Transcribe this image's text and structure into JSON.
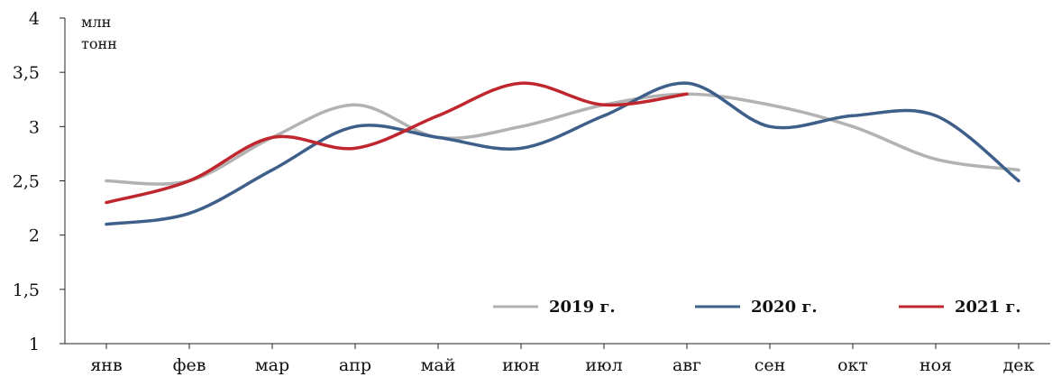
{
  "chart_data": {
    "type": "line",
    "title": "",
    "xlabel": "",
    "ylabel": "млн тонн",
    "ylabel_lines": [
      "млн",
      "тонн"
    ],
    "categories": [
      "янв",
      "фев",
      "мар",
      "апр",
      "май",
      "июн",
      "июл",
      "авг",
      "сен",
      "окт",
      "ноя",
      "дек"
    ],
    "ylim": [
      1,
      4
    ],
    "yticks": [
      "1",
      "1,5",
      "2",
      "2,5",
      "3",
      "3,5",
      "4"
    ],
    "ytick_values": [
      1,
      1.5,
      2,
      2.5,
      3,
      3.5,
      4
    ],
    "grid": false,
    "legend_position": "bottom-right",
    "series": [
      {
        "name": "2019 г.",
        "color": "#b2b2b2",
        "values": [
          2.5,
          2.5,
          2.9,
          3.2,
          2.9,
          3.0,
          3.2,
          3.3,
          3.2,
          3.0,
          2.7,
          2.6
        ]
      },
      {
        "name": "2020 г.",
        "color": "#3e5f8a",
        "values": [
          2.1,
          2.2,
          2.6,
          3.0,
          2.9,
          2.8,
          3.1,
          3.4,
          3.0,
          3.1,
          3.1,
          2.5
        ]
      },
      {
        "name": "2021 г.",
        "color": "#c0262d",
        "values": [
          2.3,
          2.5,
          2.9,
          2.8,
          3.1,
          3.4,
          3.2,
          3.3,
          null,
          null,
          null,
          null
        ]
      }
    ]
  }
}
